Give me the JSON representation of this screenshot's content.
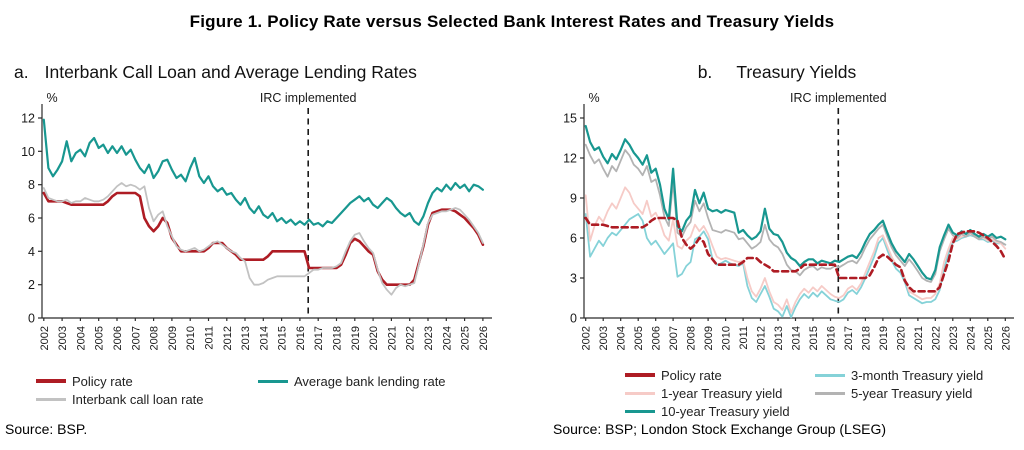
{
  "figure_title": "Figure 1. Policy Rate versus Selected Bank Interest Rates and Treasury Yields",
  "colors": {
    "policy_rate": "#AE1C24",
    "average_bank_lending_rate": "#189790",
    "interbank_call_loan_rate": "#C2C2C2",
    "treasury_10y": "#189790",
    "treasury_5y": "#B3B3B3",
    "treasury_1y": "#F6CBC7",
    "treasury_3m": "#85D2D8",
    "annotation_line": "#1A1A1A"
  },
  "chart_data": [
    {
      "id": "a",
      "type": "line",
      "panel_label": "a.",
      "title": "Interbank Call Loan and Average Lending Rates",
      "unit_label": "%",
      "xlabel": "",
      "ylabel": "%",
      "ylim": [
        0,
        12
      ],
      "y_ticks": [
        0,
        2,
        4,
        6,
        8,
        10,
        12
      ],
      "x_ticks": [
        2002,
        2003,
        2004,
        2005,
        2006,
        2007,
        2008,
        2009,
        2010,
        2011,
        2012,
        2013,
        2014,
        2015,
        2016,
        2017,
        2018,
        2019,
        2020,
        2021,
        2022,
        2023,
        2024,
        2025,
        2026
      ],
      "annotation": {
        "label": "IRC implemented",
        "x": 2016.45
      },
      "x_start": 2002,
      "x_step": 0.25,
      "grid": false,
      "legend_position": "bottom",
      "legend_columns": [
        [
          "Policy rate",
          "Interbank call loan rate"
        ],
        [
          "Average bank lending rate"
        ]
      ],
      "source": "Source: BSP.",
      "series": [
        {
          "name": "Policy rate",
          "color": "#AE1C24",
          "width": 2.6,
          "values": [
            7.5,
            7.0,
            7.0,
            7.0,
            7.0,
            6.9,
            6.8,
            6.8,
            6.8,
            6.8,
            6.8,
            6.8,
            6.8,
            6.8,
            7.0,
            7.3,
            7.5,
            7.5,
            7.5,
            7.5,
            7.5,
            7.3,
            6.0,
            5.5,
            5.2,
            5.5,
            6.0,
            5.7,
            4.8,
            4.4,
            4.0,
            4.0,
            4.0,
            4.0,
            4.0,
            4.0,
            4.2,
            4.5,
            4.5,
            4.5,
            4.2,
            4.0,
            3.8,
            3.5,
            3.5,
            3.5,
            3.5,
            3.5,
            3.5,
            3.7,
            4.0,
            4.0,
            4.0,
            4.0,
            4.0,
            4.0,
            4.0,
            4.0,
            3.0,
            3.0,
            3.0,
            3.0,
            3.0,
            3.0,
            3.0,
            3.2,
            3.8,
            4.5,
            4.75,
            4.6,
            4.3,
            4.0,
            3.8,
            2.8,
            2.3,
            2.0,
            2.0,
            2.0,
            2.0,
            2.0,
            2.0,
            2.3,
            3.3,
            4.3,
            5.6,
            6.3,
            6.4,
            6.5,
            6.5,
            6.5,
            6.4,
            6.2,
            6.0,
            5.7,
            5.4,
            5.0,
            4.4
          ]
        },
        {
          "name": "Interbank call loan rate",
          "color": "#C2C2C2",
          "width": 1.8,
          "values": [
            7.8,
            7.2,
            7.1,
            7.0,
            7.0,
            7.1,
            6.9,
            7.0,
            7.0,
            7.2,
            7.1,
            7.0,
            7.0,
            7.1,
            7.3,
            7.6,
            7.9,
            8.1,
            7.9,
            8.0,
            7.9,
            7.7,
            7.9,
            6.6,
            5.8,
            6.2,
            6.4,
            5.5,
            4.9,
            4.3,
            4.1,
            4.0,
            4.1,
            4.2,
            4.0,
            4.1,
            4.3,
            4.5,
            4.6,
            4.4,
            4.2,
            4.0,
            3.9,
            3.6,
            3.4,
            2.4,
            2.0,
            2.0,
            2.1,
            2.3,
            2.4,
            2.5,
            2.5,
            2.5,
            2.5,
            2.5,
            2.5,
            2.5,
            2.7,
            2.9,
            2.9,
            3.0,
            3.0,
            3.0,
            3.1,
            3.3,
            4.0,
            4.6,
            5.0,
            5.1,
            4.6,
            4.2,
            3.9,
            2.9,
            2.1,
            1.7,
            1.4,
            1.8,
            2.0,
            1.9,
            2.0,
            2.1,
            3.2,
            4.4,
            5.7,
            6.2,
            6.3,
            6.4,
            6.4,
            6.5,
            6.6,
            6.5,
            6.2,
            5.9,
            5.5,
            5.1,
            4.5
          ]
        },
        {
          "name": "Average bank lending rate",
          "color": "#189790",
          "width": 2.2,
          "values": [
            11.9,
            9.0,
            8.5,
            8.9,
            9.4,
            10.6,
            9.4,
            9.9,
            10.1,
            9.7,
            10.5,
            10.8,
            10.2,
            10.4,
            9.9,
            10.3,
            9.9,
            10.3,
            9.8,
            10.1,
            9.5,
            9.0,
            8.7,
            9.2,
            8.4,
            8.8,
            9.4,
            9.5,
            8.9,
            8.4,
            8.6,
            8.2,
            9.0,
            9.6,
            8.5,
            8.1,
            8.5,
            7.9,
            7.6,
            7.8,
            7.4,
            7.5,
            7.1,
            6.8,
            7.2,
            6.6,
            6.3,
            6.7,
            6.2,
            6.0,
            6.3,
            5.8,
            6.0,
            5.7,
            5.9,
            5.6,
            5.8,
            5.6,
            5.9,
            5.6,
            5.7,
            5.5,
            5.8,
            5.7,
            6.0,
            6.3,
            6.6,
            6.9,
            7.1,
            7.3,
            7.0,
            7.2,
            6.8,
            6.6,
            6.9,
            7.2,
            7.0,
            6.6,
            6.3,
            6.1,
            6.3,
            5.8,
            5.6,
            6.1,
            6.9,
            7.5,
            7.8,
            7.6,
            8.0,
            7.7,
            8.1,
            7.8,
            8.0,
            7.6,
            8.0,
            7.9,
            7.7
          ]
        }
      ]
    },
    {
      "id": "b",
      "type": "line",
      "panel_label": "b.",
      "title": "Treasury Yields",
      "unit_label": "%",
      "xlabel": "",
      "ylabel": "%",
      "ylim": [
        0,
        15
      ],
      "y_ticks": [
        0,
        3,
        6,
        9,
        12,
        15
      ],
      "x_ticks": [
        2002,
        2003,
        2004,
        2005,
        2006,
        2007,
        2008,
        2009,
        2010,
        2011,
        2012,
        2013,
        2014,
        2015,
        2016,
        2017,
        2018,
        2019,
        2020,
        2021,
        2022,
        2023,
        2024,
        2025,
        2026
      ],
      "annotation": {
        "label": "IRC implemented",
        "x": 2016.45
      },
      "x_start": 2002,
      "x_step": 0.25,
      "grid": false,
      "legend_position": "bottom",
      "legend_columns": [
        [
          "Policy rate",
          "1-year Treasury yield",
          "10-year Treasury yield"
        ],
        [
          "3-month Treasury yield",
          "5-year Treasury yield"
        ]
      ],
      "source": "Source: BSP; London Stock Exchange Group (LSEG)",
      "series": [
        {
          "name": "3-month Treasury yield",
          "color": "#85D2D8",
          "width": 1.8,
          "values": [
            7.8,
            4.6,
            5.2,
            5.8,
            5.4,
            6.0,
            6.4,
            6.2,
            6.6,
            7.0,
            7.4,
            7.6,
            7.8,
            7.3,
            6.0,
            5.5,
            5.8,
            5.3,
            4.8,
            5.2,
            5.6,
            3.1,
            3.3,
            3.9,
            4.2,
            5.9,
            6.1,
            6.5,
            5.9,
            4.4,
            4.0,
            4.1,
            4.3,
            4.1,
            4.0,
            3.9,
            4.1,
            2.4,
            1.5,
            1.2,
            1.8,
            2.4,
            1.6,
            0.7,
            0.5,
            0.1,
            0.9,
            0.05,
            0.8,
            1.4,
            1.8,
            1.5,
            1.9,
            1.6,
            2.0,
            1.7,
            1.4,
            1.3,
            1.2,
            1.4,
            1.9,
            2.1,
            1.8,
            2.3,
            3.0,
            3.8,
            4.6,
            5.6,
            6.0,
            5.1,
            4.3,
            3.7,
            3.4,
            2.7,
            1.7,
            1.5,
            1.3,
            1.1,
            1.2,
            1.2,
            1.4,
            2.1,
            3.7,
            4.8,
            5.7,
            5.8,
            6.0,
            6.1,
            6.2,
            6.1,
            5.9,
            5.9,
            5.7,
            5.8,
            5.6,
            5.6,
            5.5
          ]
        },
        {
          "name": "1-year Treasury yield",
          "color": "#F6CBC7",
          "width": 1.8,
          "values": [
            9.2,
            5.8,
            6.9,
            7.6,
            7.2,
            8.0,
            8.6,
            8.2,
            9.0,
            9.8,
            9.4,
            8.6,
            8.2,
            7.8,
            8.8,
            7.6,
            7.9,
            7.2,
            6.2,
            5.8,
            7.4,
            5.4,
            5.2,
            5.8,
            6.1,
            7.0,
            6.5,
            6.9,
            6.3,
            5.4,
            4.6,
            4.4,
            4.5,
            4.4,
            4.3,
            4.2,
            4.3,
            3.0,
            2.0,
            1.6,
            2.2,
            3.0,
            2.0,
            1.2,
            1.0,
            0.6,
            1.4,
            0.4,
            1.2,
            1.8,
            2.2,
            1.9,
            2.3,
            2.0,
            2.4,
            2.1,
            1.8,
            1.6,
            1.5,
            1.7,
            2.2,
            2.4,
            2.1,
            2.6,
            3.4,
            4.2,
            5.0,
            6.0,
            6.2,
            5.4,
            4.6,
            4.0,
            3.8,
            3.0,
            2.0,
            1.8,
            1.6,
            1.4,
            1.5,
            1.5,
            1.8,
            2.6,
            4.2,
            5.2,
            6.0,
            5.9,
            6.1,
            6.2,
            6.3,
            6.2,
            6.0,
            6.0,
            5.8,
            5.9,
            5.7,
            5.6,
            5.2
          ]
        },
        {
          "name": "5-year Treasury yield",
          "color": "#B3B3B3",
          "width": 1.8,
          "values": [
            13.0,
            12.2,
            11.6,
            11.9,
            11.2,
            10.6,
            11.4,
            11.0,
            11.8,
            12.6,
            12.2,
            11.5,
            11.2,
            10.7,
            11.4,
            10.2,
            10.4,
            9.2,
            7.6,
            6.9,
            10.2,
            6.4,
            6.1,
            6.8,
            7.2,
            8.8,
            8.0,
            8.6,
            7.5,
            6.6,
            6.5,
            6.4,
            6.6,
            6.5,
            6.4,
            5.9,
            6.0,
            5.6,
            5.2,
            5.4,
            5.7,
            7.0,
            5.9,
            5.5,
            5.3,
            4.8,
            4.0,
            3.6,
            3.5,
            3.2,
            3.6,
            3.8,
            3.9,
            3.6,
            3.8,
            3.7,
            3.7,
            3.9,
            3.8,
            4.0,
            4.2,
            4.3,
            4.1,
            4.6,
            5.3,
            5.9,
            6.3,
            6.7,
            7.0,
            6.1,
            5.3,
            4.7,
            4.3,
            3.9,
            4.4,
            4.0,
            3.5,
            3.0,
            2.8,
            2.7,
            3.3,
            5.0,
            5.9,
            6.7,
            6.2,
            6.0,
            6.3,
            6.1,
            6.4,
            6.1,
            5.9,
            6.1,
            5.9,
            6.1,
            5.8,
            5.7,
            5.5
          ]
        },
        {
          "name": "10-year Treasury yield",
          "color": "#189790",
          "width": 2.2,
          "values": [
            14.4,
            13.2,
            12.6,
            12.8,
            12.1,
            11.6,
            12.3,
            11.9,
            12.6,
            13.4,
            13.0,
            12.4,
            12.0,
            11.5,
            12.2,
            10.9,
            11.2,
            10.0,
            8.2,
            7.4,
            11.2,
            6.9,
            6.5,
            7.3,
            7.7,
            9.6,
            8.6,
            9.4,
            8.2,
            8.0,
            8.1,
            7.9,
            8.1,
            8.0,
            7.9,
            6.4,
            6.6,
            6.2,
            5.9,
            6.1,
            6.5,
            8.2,
            6.7,
            6.3,
            6.2,
            5.7,
            4.9,
            4.5,
            4.3,
            3.9,
            4.2,
            4.4,
            4.4,
            4.1,
            4.3,
            4.2,
            4.1,
            4.3,
            4.2,
            4.4,
            4.6,
            4.7,
            4.5,
            5.0,
            5.7,
            6.3,
            6.6,
            7.0,
            7.3,
            6.4,
            5.6,
            5.0,
            4.6,
            4.2,
            4.8,
            4.4,
            3.9,
            3.4,
            3.0,
            2.9,
            3.6,
            5.3,
            6.2,
            7.0,
            6.4,
            6.2,
            6.5,
            6.3,
            6.6,
            6.3,
            6.1,
            6.3,
            6.1,
            6.3,
            6.0,
            6.1,
            5.9
          ]
        },
        {
          "name": "Policy rate",
          "color": "#AE1C24",
          "width": 2.6,
          "dash": "6 4",
          "values": [
            7.5,
            7.0,
            7.0,
            7.0,
            7.0,
            6.9,
            6.8,
            6.8,
            6.8,
            6.8,
            6.8,
            6.8,
            6.8,
            6.8,
            7.0,
            7.3,
            7.5,
            7.5,
            7.5,
            7.5,
            7.5,
            7.3,
            6.0,
            5.5,
            5.2,
            5.5,
            6.0,
            5.7,
            4.8,
            4.4,
            4.0,
            4.0,
            4.0,
            4.0,
            4.0,
            4.0,
            4.2,
            4.5,
            4.5,
            4.5,
            4.2,
            4.0,
            3.8,
            3.5,
            3.5,
            3.5,
            3.5,
            3.5,
            3.5,
            3.7,
            4.0,
            4.0,
            4.0,
            4.0,
            4.0,
            4.0,
            4.0,
            4.0,
            3.0,
            3.0,
            3.0,
            3.0,
            3.0,
            3.0,
            3.0,
            3.2,
            3.8,
            4.5,
            4.75,
            4.6,
            4.3,
            4.0,
            3.8,
            2.8,
            2.3,
            2.0,
            2.0,
            2.0,
            2.0,
            2.0,
            2.0,
            2.3,
            3.3,
            4.3,
            5.6,
            6.3,
            6.4,
            6.5,
            6.5,
            6.5,
            6.4,
            6.2,
            6.0,
            5.7,
            5.4,
            5.0,
            4.4
          ]
        }
      ]
    }
  ]
}
